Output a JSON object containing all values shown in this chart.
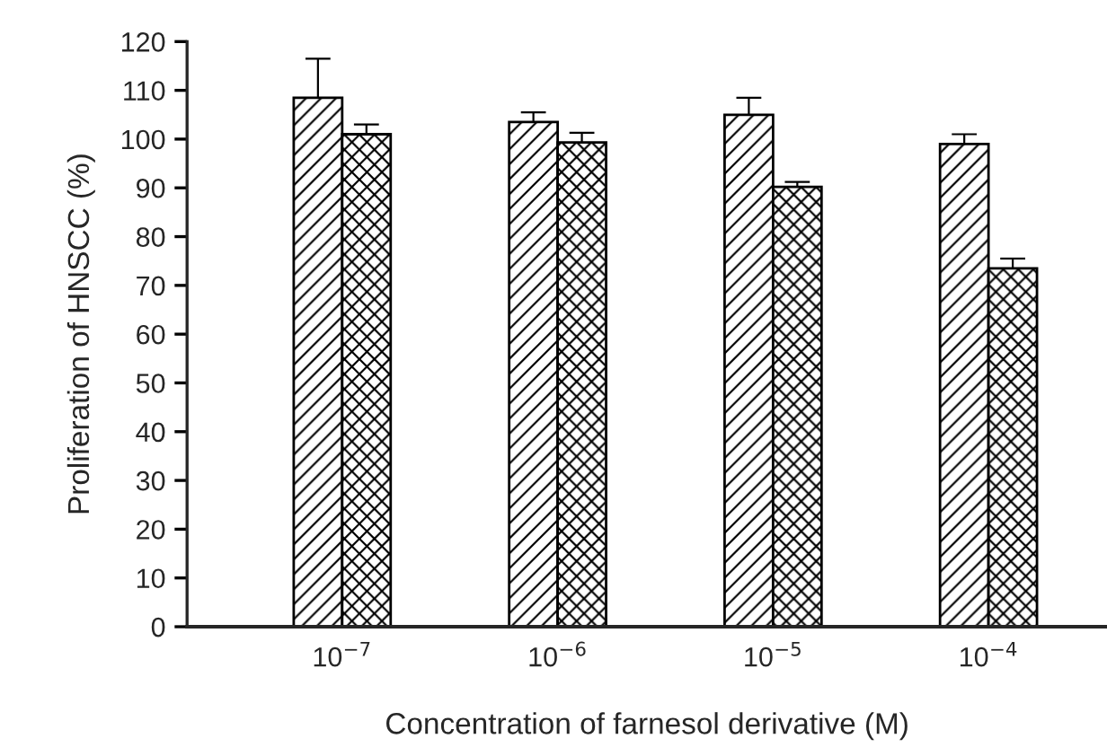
{
  "chart_data": {
    "type": "bar",
    "xlabel": "Concentration of farnesol derivative (M)",
    "ylabel": "Proliferation of HNSCC (%)",
    "categories": [
      "10$^{−7}$",
      "10$^{−6}$",
      "10$^{−5}$",
      "10$^{−4}$"
    ],
    "series": [
      {
        "color": "#000000",
        "values": [
          108.5,
          103.5,
          105,
          99
        ],
        "errors": [
          8,
          2,
          3.5,
          2
        ]
      },
      {
        "color": "#000000",
        "values": [
          101,
          99.3,
          90.2,
          73.5
        ],
        "errors": [
          2,
          2,
          1,
          2
        ]
      }
    ],
    "ylim": [
      0,
      120
    ],
    "yticks": [
      0,
      10,
      20,
      30,
      40,
      50,
      60,
      70,
      80,
      90,
      100,
      110,
      120
    ],
    "grid": false,
    "legend": false
  }
}
